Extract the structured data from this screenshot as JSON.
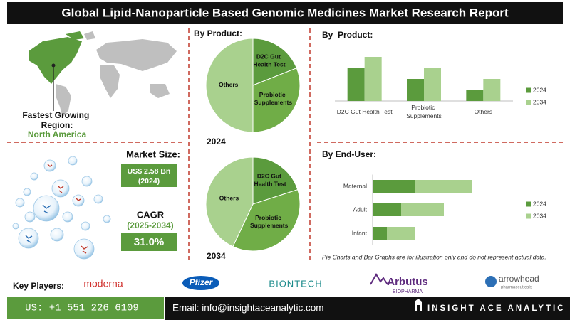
{
  "header": {
    "title": "Global Lipid-Nanoparticle Based Genomic Medicines Market Research Report"
  },
  "region": {
    "label": "Fastest Growing Region:",
    "value": "North America"
  },
  "market_size": {
    "label": "Market Size:",
    "value": "US$ 2.58 Bn",
    "year": "(2024)"
  },
  "cagr": {
    "label": "CAGR",
    "period": "(2025-2034)",
    "value": "31.0%"
  },
  "disclaimer": "Pie Charts and Bar Graphs are for illustration only and do not represent actual data.",
  "key_players": {
    "label": "Key Players:",
    "players": [
      {
        "name": "moderna"
      },
      {
        "name": "Pfizer"
      },
      {
        "name": "BIONTECH"
      },
      {
        "name": "Arbutus",
        "subtitle": "BIOPHARMA"
      },
      {
        "name": "arrowhead",
        "subtitle": "pharmaceuticals"
      }
    ]
  },
  "footer": {
    "phone": "US: +1 551 226 6109",
    "email": "Email: info@insightaceanalytic.com",
    "brand": "INSIGHT ACE ANALYTIC"
  },
  "chart_data": [
    {
      "type": "pie",
      "title": "By Product:",
      "subtitle": "2024",
      "categories": [
        "D2C Gut Health Test",
        "Probiotic Supplements",
        "Others"
      ],
      "values": [
        19,
        31,
        50
      ],
      "colors": [
        "#5b9b3d",
        "#70ad47",
        "#a9d18e"
      ]
    },
    {
      "type": "pie",
      "subtitle": "2034",
      "categories": [
        "D2C Gut Health Test",
        "Probiotic Supplements",
        "Others"
      ],
      "values": [
        20,
        37,
        43
      ],
      "colors": [
        "#5b9b3d",
        "#70ad47",
        "#a9d18e"
      ]
    },
    {
      "type": "bar",
      "title": "By  Product:",
      "categories": [
        "D2C Gut Health Test",
        "Probiotic Supplements",
        "Others"
      ],
      "series": [
        {
          "name": "2024",
          "color": "#5b9b3d",
          "values": [
            3,
            2,
            1
          ]
        },
        {
          "name": "2034",
          "color": "#a9d18e",
          "values": [
            4,
            3,
            2
          ]
        }
      ],
      "legend": "right"
    },
    {
      "type": "stacked-barh",
      "title": "By End-User:",
      "categories": [
        "Maternal",
        "Adult",
        "Infant"
      ],
      "series": [
        {
          "name": "2024",
          "color": "#5b9b3d",
          "values": [
            3,
            2,
            1
          ]
        },
        {
          "name": "2034",
          "color": "#a9d18e",
          "values": [
            4,
            3,
            2
          ]
        }
      ],
      "legend": "right"
    }
  ]
}
